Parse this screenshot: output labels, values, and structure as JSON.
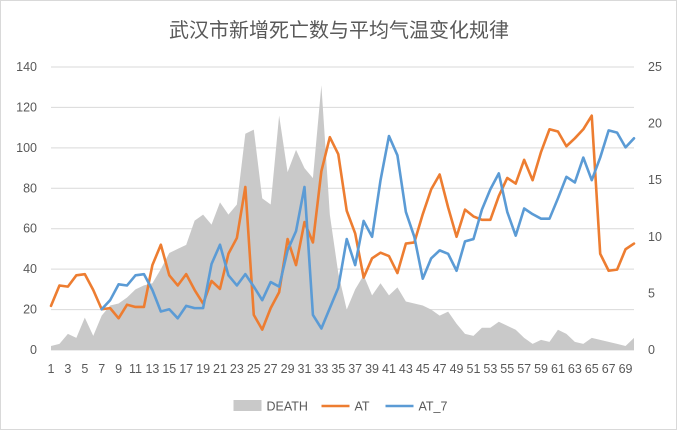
{
  "chart_data": {
    "type": "area+line",
    "title": "武汉市新增死亡数与平均气温变化规律",
    "xlabel": "",
    "ylabel": "",
    "y2label": "",
    "x": [
      1,
      2,
      3,
      4,
      5,
      6,
      7,
      8,
      9,
      10,
      11,
      12,
      13,
      14,
      15,
      16,
      17,
      18,
      19,
      20,
      21,
      22,
      23,
      24,
      25,
      26,
      27,
      28,
      29,
      30,
      31,
      32,
      33,
      34,
      35,
      36,
      37,
      38,
      39,
      40,
      41,
      42,
      43,
      44,
      45,
      46,
      47,
      48,
      49,
      50,
      51,
      52,
      53,
      54,
      55,
      56,
      57,
      58,
      59,
      60,
      61,
      62,
      63,
      64,
      65,
      66,
      67,
      68,
      69,
      70
    ],
    "x_tick_labels": [
      "1",
      "3",
      "5",
      "7",
      "9",
      "11",
      "13",
      "15",
      "17",
      "19",
      "21",
      "23",
      "25",
      "27",
      "29",
      "31",
      "33",
      "35",
      "37",
      "39",
      "41",
      "43",
      "45",
      "47",
      "49",
      "51",
      "53",
      "55",
      "57",
      "59",
      "61",
      "63",
      "65",
      "67",
      "69"
    ],
    "ylim_left": [
      0,
      140
    ],
    "y_ticks_left": [
      0,
      20,
      40,
      60,
      80,
      100,
      120,
      140
    ],
    "ylim_right": [
      0,
      25
    ],
    "y_ticks_right": [
      0,
      5,
      10,
      15,
      20,
      25
    ],
    "grid": true,
    "legend_position": "bottom",
    "series": [
      {
        "name": "DEATH",
        "kind": "area",
        "axis": "left",
        "color": "#c9c9c9",
        "values": [
          2,
          3,
          8,
          6,
          16,
          7,
          17,
          22,
          23,
          26,
          30,
          32,
          33,
          40,
          48,
          50,
          52,
          64,
          67,
          62,
          73,
          67,
          72,
          107,
          109,
          75,
          72,
          116,
          88,
          99,
          90,
          85,
          131,
          67,
          38,
          20,
          30,
          37,
          27,
          33,
          27,
          31,
          24,
          23,
          22,
          20,
          17,
          19,
          13,
          8,
          7,
          11,
          11,
          14,
          12,
          10,
          6,
          3,
          5,
          4,
          10,
          8,
          4,
          3,
          6,
          5,
          4,
          3,
          2,
          6
        ]
      },
      {
        "name": "AT",
        "kind": "line",
        "axis": "right",
        "color": "#ed7d31",
        "values": [
          3.9,
          5.7,
          5.6,
          6.6,
          6.7,
          5.3,
          3.6,
          3.7,
          2.8,
          4.0,
          3.8,
          3.8,
          7.5,
          9.3,
          6.6,
          5.7,
          6.7,
          5.3,
          4.1,
          6.1,
          5.4,
          8.5,
          9.9,
          14.4,
          3.1,
          1.8,
          3.7,
          5.1,
          9.8,
          7.5,
          11.3,
          9.5,
          15.8,
          18.8,
          17.3,
          12.3,
          10.3,
          6.4,
          8.1,
          8.6,
          8.3,
          6.8,
          9.4,
          9.5,
          12.0,
          14.2,
          15.5,
          12.6,
          10.0,
          12.4,
          11.8,
          11.5,
          11.5,
          13.6,
          15.2,
          14.7,
          16.8,
          15.0,
          17.5,
          19.5,
          19.3,
          18.0,
          18.7,
          19.5,
          20.7,
          8.5,
          7.0,
          7.1,
          8.9,
          9.4
        ]
      },
      {
        "name": "AT_7",
        "kind": "line",
        "axis": "right",
        "color": "#5b9bd5",
        "values": [
          null,
          null,
          null,
          null,
          null,
          null,
          3.6,
          4.4,
          5.8,
          5.7,
          6.6,
          6.7,
          5.3,
          3.4,
          3.6,
          2.8,
          3.9,
          3.7,
          3.7,
          7.6,
          9.3,
          6.6,
          5.7,
          6.7,
          5.6,
          4.4,
          6.0,
          5.6,
          8.8,
          10.5,
          14.4,
          3.1,
          1.9,
          3.7,
          5.5,
          9.8,
          7.5,
          11.4,
          10.0,
          15.0,
          18.9,
          17.2,
          12.2,
          10.0,
          6.3,
          8.1,
          8.8,
          8.5,
          7.0,
          9.6,
          9.8,
          12.4,
          14.2,
          15.6,
          12.2,
          10.1,
          12.5,
          12.0,
          11.6,
          11.6,
          13.4,
          15.3,
          14.8,
          17.0,
          15.0,
          17.0,
          19.4,
          19.2,
          17.9,
          18.7
        ]
      }
    ]
  }
}
